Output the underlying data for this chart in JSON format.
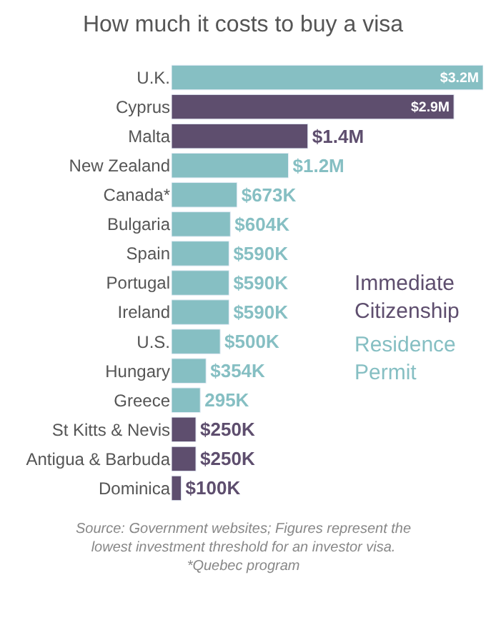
{
  "chart_data": {
    "type": "bar",
    "orientation": "horizontal",
    "title": "How much it costs to buy a visa",
    "categories": [
      "U.K.",
      "Cyprus",
      "Malta",
      "New Zealand",
      "Canada*",
      "Bulgaria",
      "Spain",
      "Portugal",
      "Ireland",
      "U.S.",
      "Hungary",
      "Greece",
      "St Kitts & Nevis",
      "Antigua & Barbuda",
      "Dominica"
    ],
    "series": [
      {
        "name": "Immediate Citizenship",
        "color": "#5e4e6e",
        "values": [
          null,
          2900000,
          1400000,
          null,
          null,
          null,
          null,
          null,
          null,
          null,
          null,
          null,
          250000,
          250000,
          100000
        ],
        "value_labels": [
          null,
          "$2.9M",
          "$1.4M",
          null,
          null,
          null,
          null,
          null,
          null,
          null,
          null,
          null,
          "$250K",
          "$250K",
          "$100K"
        ]
      },
      {
        "name": "Residence Permit",
        "color": "#86bfc3",
        "values": [
          3200000,
          null,
          null,
          1200000,
          673000,
          604000,
          590000,
          590000,
          590000,
          500000,
          354000,
          295000,
          null,
          null,
          null
        ],
        "value_labels": [
          "$3.2M",
          null,
          null,
          "$1.2M",
          "$673K",
          "$604K",
          "$590K",
          "$590K",
          "$590K",
          "$500K",
          "$354K",
          "295K",
          null,
          null,
          null
        ]
      }
    ],
    "legend": "right",
    "annotations": [
      "Source: Government websites; Figures represent the lowest investment threshold for an investor visa. *Quebec program"
    ]
  }
}
